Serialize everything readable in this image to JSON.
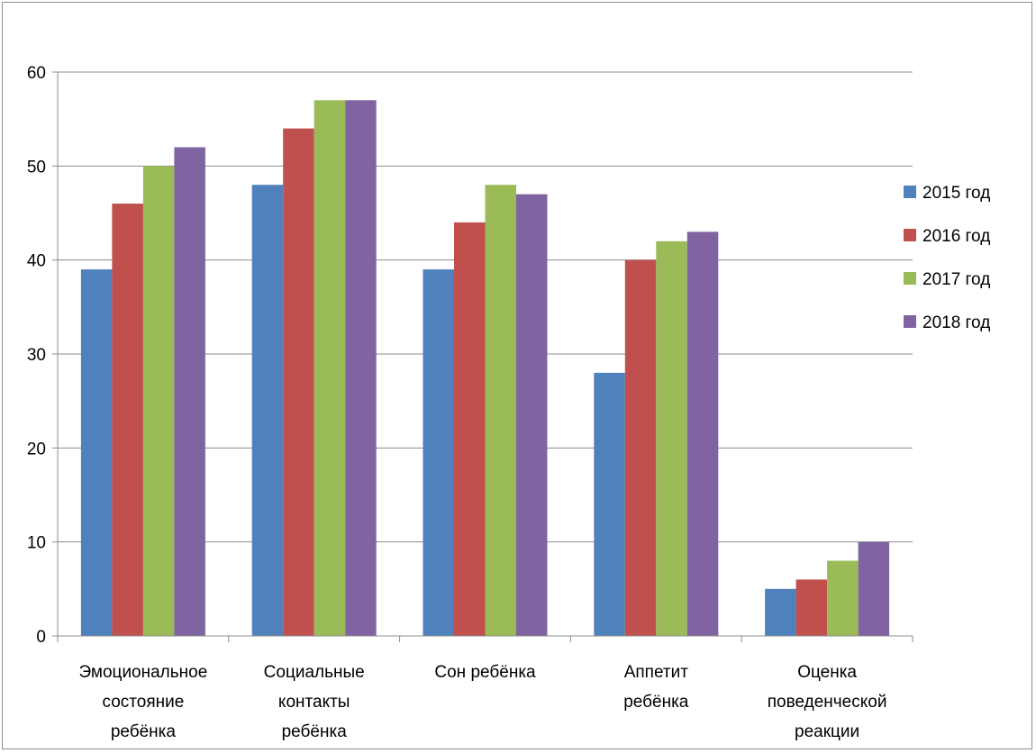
{
  "chart_data": {
    "type": "bar",
    "categories": [
      [
        "Эмоциональное",
        "состояние",
        "ребёнка"
      ],
      [
        "Социальные",
        "контакты",
        "ребёнка"
      ],
      [
        "Сон ребёнка"
      ],
      [
        "Аппетит",
        "ребёнка"
      ],
      [
        "Оценка",
        "поведенческой",
        "реакции"
      ]
    ],
    "series": [
      {
        "name": "2015 год",
        "color": "#4f81bd",
        "values": [
          39,
          48,
          39,
          28,
          5
        ]
      },
      {
        "name": "2016 год",
        "color": "#c0504d",
        "values": [
          46,
          54,
          44,
          40,
          6
        ]
      },
      {
        "name": "2017 год",
        "color": "#9bbb59",
        "values": [
          50,
          57,
          48,
          42,
          8
        ]
      },
      {
        "name": "2018 год",
        "color": "#8064a2",
        "values": [
          52,
          57,
          47,
          43,
          10
        ]
      }
    ],
    "yticks": [
      "0",
      "10",
      "20",
      "30",
      "40",
      "50",
      "60"
    ],
    "ylim": [
      0,
      60
    ],
    "grid": true,
    "legend_position": "right"
  }
}
